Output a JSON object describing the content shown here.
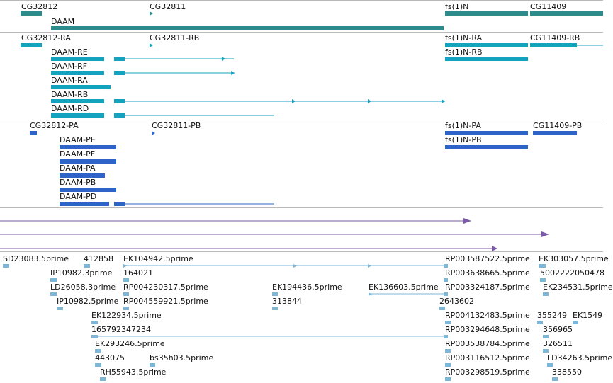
{
  "colors": {
    "gene": "#2e8b8b",
    "transcript": "#13a3bf",
    "protein": "#2e64c7",
    "track4": "#7a5aa6",
    "est": "#7fb6d6",
    "separator": "#b9b9b9"
  },
  "tracks": {
    "genes": [
      "CG32812",
      "CG32811",
      "DAAM",
      "fs(1)N",
      "CG11409"
    ],
    "transcripts": [
      "CG32812-RA",
      "CG32811-RB",
      "fs(1)N-RA",
      "CG11409-RB",
      "DAAM-RE",
      "fs(1)N-RB",
      "DAAM-RF",
      "DAAM-RA",
      "DAAM-RB",
      "DAAM-RD"
    ],
    "proteins": [
      "CG32812-PA",
      "CG32811-PB",
      "fs(1)N-PA",
      "CG11409-PB",
      "DAAM-PE",
      "fs(1)N-PB",
      "DAAM-PF",
      "DAAM-PA",
      "DAAM-PB",
      "DAAM-PD"
    ],
    "ests": [
      "SD23083.5prime",
      "412858",
      "EK104942.5prime",
      "RP003587522.5prime",
      "EK303057.5prime",
      "IP10982.3prime",
      "164021",
      "RP003638665.5prime",
      "5002222050478",
      "LD26058.3prime",
      "RP004230317.5prime",
      "EK194436.5prime",
      "EK136603.5prime",
      "RP003324187.5prime",
      "EK234531.5prime",
      "IP10982.5prime",
      "RP004559921.5prime",
      "313844",
      "2643602",
      "EK122934.5prime",
      "RP004132483.5prime",
      "355249",
      "EK1549",
      "165792347234",
      "RP003294648.5prime",
      "356965",
      "EK293246.5prime",
      "RP003538784.5prime",
      "326511",
      "443075",
      "bs35h03.5prime",
      "RP003116512.5prime",
      "LD34263.5prime",
      "RH55943.5prime",
      "RP003298519.5prime",
      "338550"
    ]
  }
}
